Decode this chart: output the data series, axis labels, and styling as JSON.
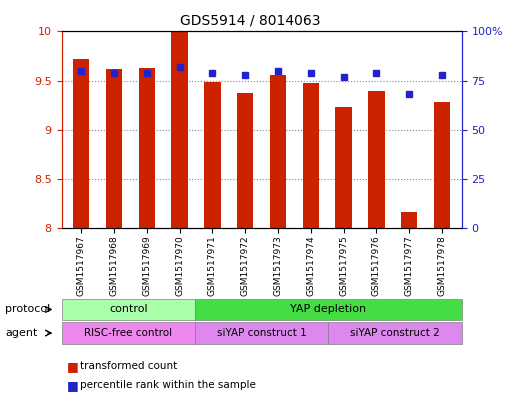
{
  "title": "GDS5914 / 8014063",
  "samples": [
    "GSM1517967",
    "GSM1517968",
    "GSM1517969",
    "GSM1517970",
    "GSM1517971",
    "GSM1517972",
    "GSM1517973",
    "GSM1517974",
    "GSM1517975",
    "GSM1517976",
    "GSM1517977",
    "GSM1517978"
  ],
  "transformed_counts": [
    9.72,
    9.62,
    9.63,
    10.0,
    9.49,
    9.37,
    9.56,
    9.48,
    9.23,
    9.39,
    8.16,
    9.28
  ],
  "percentile_ranks": [
    80,
    79,
    79,
    82,
    79,
    78,
    80,
    79,
    77,
    79,
    68,
    78
  ],
  "y_min": 8.0,
  "y_max": 10.0,
  "y_ticks": [
    8.0,
    8.5,
    9.0,
    9.5,
    10.0
  ],
  "y_tick_labels": [
    "8",
    "8.5",
    "9",
    "9.5",
    "10"
  ],
  "y2_ticks": [
    0,
    25,
    50,
    75,
    100
  ],
  "y2_tick_labels": [
    "0",
    "25",
    "50",
    "75",
    "100%"
  ],
  "bar_color": "#cc2200",
  "dot_color": "#2222cc",
  "protocol_groups": [
    {
      "label": "control",
      "start": 0,
      "end": 3,
      "color": "#aaffaa"
    },
    {
      "label": "YAP depletion",
      "start": 4,
      "end": 11,
      "color": "#44dd44"
    }
  ],
  "agent_groups": [
    {
      "label": "RISC-free control",
      "start": 0,
      "end": 3,
      "color": "#ee88ee"
    },
    {
      "label": "siYAP construct 1",
      "start": 4,
      "end": 7,
      "color": "#dd88ee"
    },
    {
      "label": "siYAP construct 2",
      "start": 8,
      "end": 11,
      "color": "#dd88ee"
    }
  ],
  "legend_items": [
    {
      "label": "transformed count",
      "color": "#cc2200"
    },
    {
      "label": "percentile rank within the sample",
      "color": "#2222cc"
    }
  ],
  "protocol_label": "protocol",
  "agent_label": "agent",
  "bg_color": "#ffffff",
  "plot_bg_color": "#ffffff",
  "grid_color": "#888888",
  "label_color_left": "#cc2200",
  "label_color_right": "#2222cc"
}
